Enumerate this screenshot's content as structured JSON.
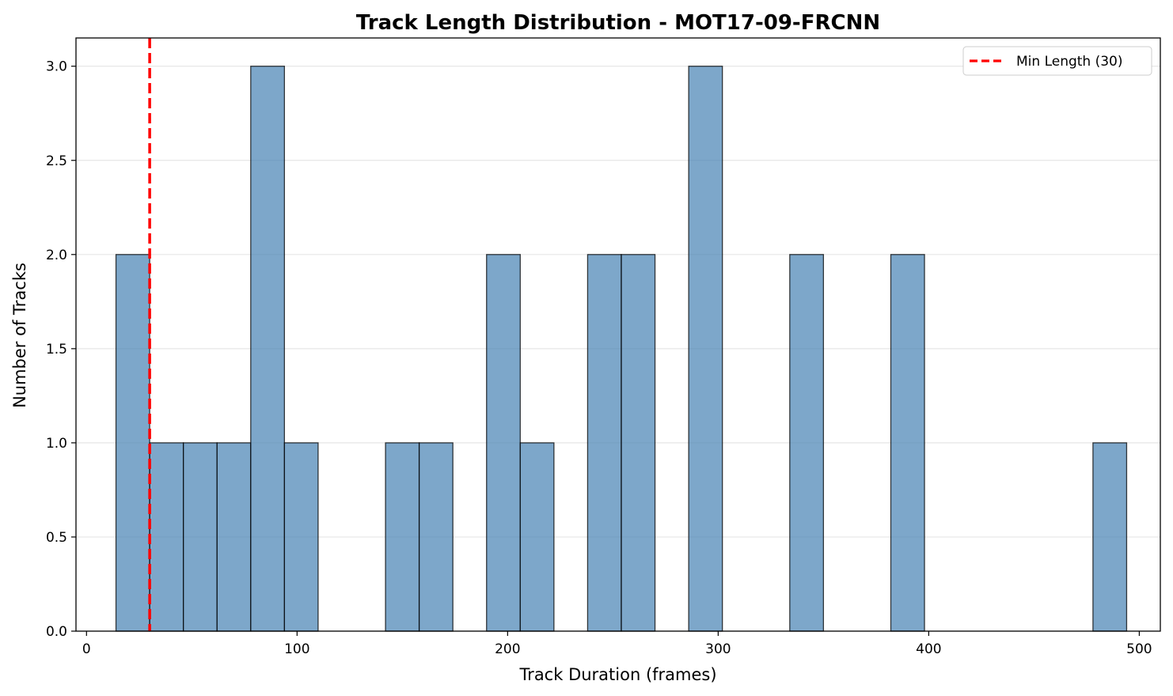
{
  "chart_data": {
    "type": "bar",
    "subtype": "histogram",
    "title": "Track Length Distribution - MOT17-09-FRCNN",
    "xlabel": "Track Duration (frames)",
    "ylabel": "Number of Tracks",
    "xlim": [
      -5,
      510
    ],
    "ylim": [
      0,
      3.15
    ],
    "xticks": [
      0,
      100,
      200,
      300,
      400,
      500
    ],
    "yticks": [
      0.0,
      0.5,
      1.0,
      1.5,
      2.0,
      2.5,
      3.0
    ],
    "xtick_labels": [
      "0",
      "100",
      "200",
      "300",
      "400",
      "500"
    ],
    "ytick_labels": [
      "0.0",
      "0.5",
      "1.0",
      "1.5",
      "2.0",
      "2.5",
      "3.0"
    ],
    "grid": "y",
    "bins": [
      {
        "x0": 14,
        "x1": 30,
        "count": 2
      },
      {
        "x0": 30,
        "x1": 46,
        "count": 1
      },
      {
        "x0": 46,
        "x1": 62,
        "count": 1
      },
      {
        "x0": 62,
        "x1": 78,
        "count": 1
      },
      {
        "x0": 78,
        "x1": 94,
        "count": 3
      },
      {
        "x0": 94,
        "x1": 110,
        "count": 1
      },
      {
        "x0": 110,
        "x1": 126,
        "count": 0
      },
      {
        "x0": 126,
        "x1": 142,
        "count": 0
      },
      {
        "x0": 142,
        "x1": 158,
        "count": 1
      },
      {
        "x0": 158,
        "x1": 174,
        "count": 1
      },
      {
        "x0": 174,
        "x1": 190,
        "count": 0
      },
      {
        "x0": 190,
        "x1": 206,
        "count": 2
      },
      {
        "x0": 206,
        "x1": 222,
        "count": 1
      },
      {
        "x0": 222,
        "x1": 238,
        "count": 0
      },
      {
        "x0": 238,
        "x1": 254,
        "count": 2
      },
      {
        "x0": 254,
        "x1": 270,
        "count": 2
      },
      {
        "x0": 270,
        "x1": 286,
        "count": 0
      },
      {
        "x0": 286,
        "x1": 302,
        "count": 3
      },
      {
        "x0": 302,
        "x1": 318,
        "count": 0
      },
      {
        "x0": 318,
        "x1": 334,
        "count": 0
      },
      {
        "x0": 334,
        "x1": 350,
        "count": 2
      },
      {
        "x0": 350,
        "x1": 366,
        "count": 0
      },
      {
        "x0": 366,
        "x1": 382,
        "count": 0
      },
      {
        "x0": 382,
        "x1": 398,
        "count": 2
      },
      {
        "x0": 398,
        "x1": 414,
        "count": 0
      },
      {
        "x0": 414,
        "x1": 430,
        "count": 0
      },
      {
        "x0": 430,
        "x1": 446,
        "count": 0
      },
      {
        "x0": 446,
        "x1": 462,
        "count": 0
      },
      {
        "x0": 462,
        "x1": 478,
        "count": 0
      },
      {
        "x0": 478,
        "x1": 494,
        "count": 1
      }
    ],
    "bar_color": "#4682b4",
    "bar_alpha": 0.7,
    "bar_edge_color": "#000000",
    "reference_line": {
      "x": 30,
      "label": "Min Length (30)",
      "color": "#ff0000",
      "style": "dashed"
    },
    "legend": {
      "position": "top-right",
      "entries": [
        "Min Length (30)"
      ]
    }
  }
}
